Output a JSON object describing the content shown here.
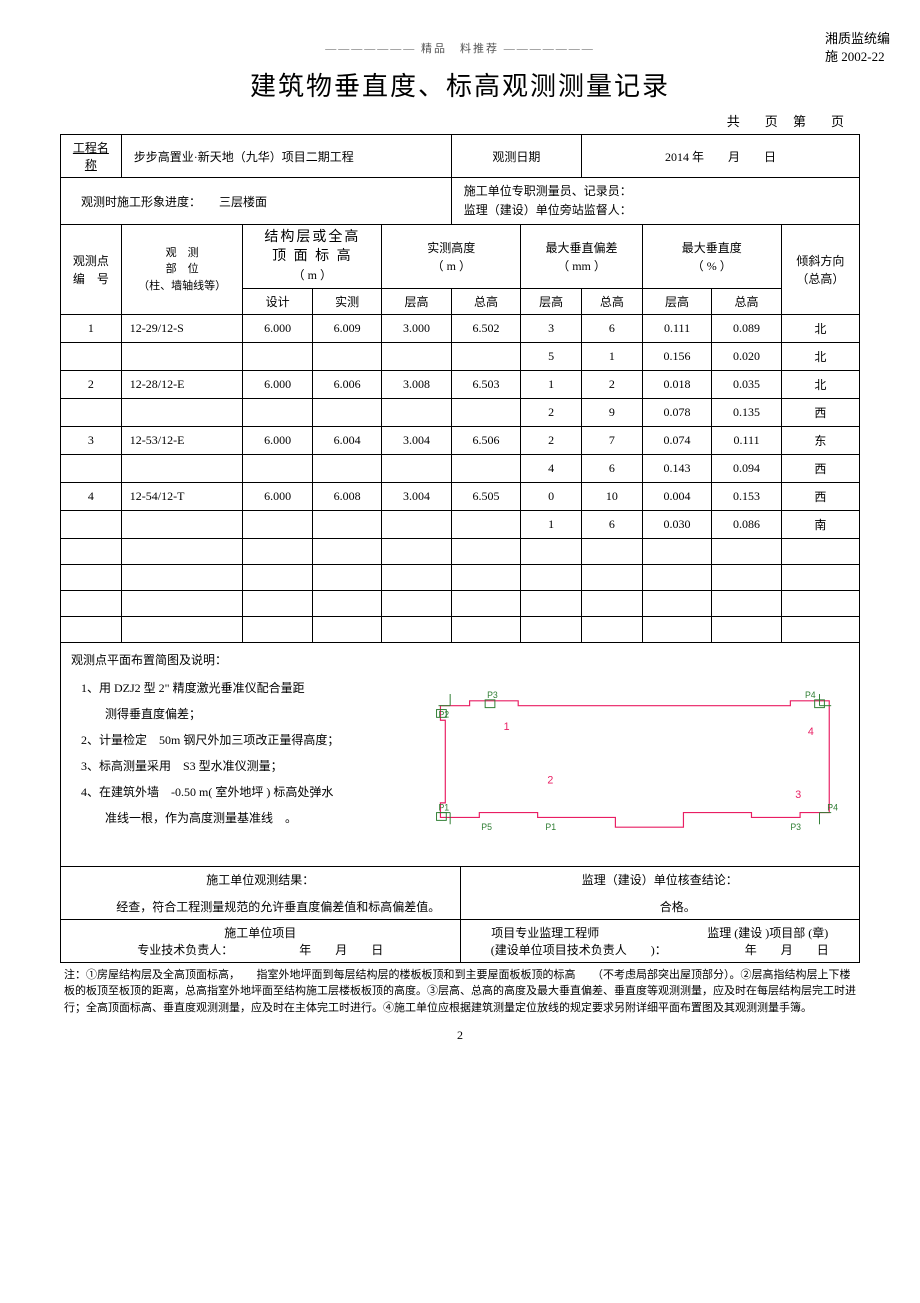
{
  "header": {
    "deco_text": "——————— 精品　料推荐 ———————",
    "org_text": "湘质监统编",
    "doc_no": "施 2002-22"
  },
  "title": "建筑物垂直度、标高观测测量记录",
  "page_indicator": "共　页 第　页",
  "project": {
    "name_label": "工程名称",
    "name_value": "步步高置业·新天地（九华）项目二期工程",
    "date_label": "观测日期",
    "date_value": "2014 年　　月　　日"
  },
  "progress": {
    "label": "观测时施工形象进度：",
    "value": "三层楼面",
    "staff_line1": "施工单位专职测量员、记录员：",
    "staff_line2": "监理（建设）单位旁站监督人："
  },
  "table_headers": {
    "point_no": "观测点\n编　号",
    "position": "观　测\n部　位\n（柱、墙轴线等）",
    "struct_height": "结构层或全高\n顶 面 标 高",
    "struct_unit": "（ m ）",
    "design": "设计",
    "measured": "实测",
    "actual_height": "实测高度",
    "actual_unit": "（ m ）",
    "floor_h": "层高",
    "total_h": "总高",
    "max_dev": "最大垂直偏差",
    "max_dev_unit": "（ mm ）",
    "max_vert": "最大垂直度",
    "max_vert_unit": "（ % ）",
    "tilt_dir": "倾斜方向\n（总高）"
  },
  "rows": [
    {
      "no": "1",
      "pos": "12-29/12-S",
      "design": "6.000",
      "measured": "6.009",
      "fh": "3.000",
      "th": "6.502",
      "dfh": "3",
      "dth": "6",
      "vfh": "0.111",
      "vth": "0.089",
      "dir": "北"
    },
    {
      "no": "",
      "pos": "",
      "design": "",
      "measured": "",
      "fh": "",
      "th": "",
      "dfh": "5",
      "dth": "1",
      "vfh": "0.156",
      "vth": "0.020",
      "dir": "北"
    },
    {
      "no": "2",
      "pos": "12-28/12-E",
      "design": "6.000",
      "measured": "6.006",
      "fh": "3.008",
      "th": "6.503",
      "dfh": "1",
      "dth": "2",
      "vfh": "0.018",
      "vth": "0.035",
      "dir": "北"
    },
    {
      "no": "",
      "pos": "",
      "design": "",
      "measured": "",
      "fh": "",
      "th": "",
      "dfh": "2",
      "dth": "9",
      "vfh": "0.078",
      "vth": "0.135",
      "dir": "西"
    },
    {
      "no": "3",
      "pos": "12-53/12-E",
      "design": "6.000",
      "measured": "6.004",
      "fh": "3.004",
      "th": "6.506",
      "dfh": "2",
      "dth": "7",
      "vfh": "0.074",
      "vth": "0.111",
      "dir": "东"
    },
    {
      "no": "",
      "pos": "",
      "design": "",
      "measured": "",
      "fh": "",
      "th": "",
      "dfh": "4",
      "dth": "6",
      "vfh": "0.143",
      "vth": "0.094",
      "dir": "西"
    },
    {
      "no": "4",
      "pos": "12-54/12-T",
      "design": "6.000",
      "measured": "6.008",
      "fh": "3.004",
      "th": "6.505",
      "dfh": "0",
      "dth": "10",
      "vfh": "0.004",
      "vth": "0.153",
      "dir": "西"
    },
    {
      "no": "",
      "pos": "",
      "design": "",
      "measured": "",
      "fh": "",
      "th": "",
      "dfh": "1",
      "dth": "6",
      "vfh": "0.030",
      "vth": "0.086",
      "dir": "南"
    }
  ],
  "empty_rows_count": 4,
  "notes": {
    "heading": "观测点平面布置简图及说明：",
    "items": [
      "1、用 DZJ2 型 2\" 精度激光垂准仪配合量距",
      "　　测得垂直度偏差；",
      "2、计量检定　50m 钢尺外加三项改正量得高度；",
      "3、标高测量采用　S3 型水准仪测量；",
      "4、在建筑外墙　-0.50 m( 室外地坪 ) 标高处弹水",
      "　　准线一根，作为高度测量基准线　。"
    ]
  },
  "diagram": {
    "outline_color": "#e91e63",
    "marker_color": "#2e7d32",
    "text_color": "#e91e63",
    "labels": [
      "1",
      "2",
      "3",
      "4"
    ],
    "points": [
      "P3",
      "P2",
      "P1",
      "P4",
      "P5",
      "P1",
      "P2",
      "P3",
      "P4"
    ]
  },
  "conclusion": {
    "left_title": "施工单位观测结果：",
    "left_body": "　　　经查，符合工程测量规范的允许垂直度偏差值和标高偏差值。",
    "right_title": "监理（建设）单位核查结论：",
    "right_body": "　　　合格。"
  },
  "signatures": {
    "left_label1": "施工单位项目",
    "left_label2": "专业技术负责人：",
    "date_str": "年　　月　　日",
    "mid_label1": "项目专业监理工程师",
    "mid_label2": "(建设单位项目技术负责人　　)：",
    "right_label": "监理 (建设 )项目部 (章)"
  },
  "footnote": "注：①房屋结构层及全高顶面标高，　　指室外地坪面到每层结构层的楼板板顶和到主要屋面板板顶的标高　　（不考虑局部突出屋顶部分）。②层高指结构层上下楼板的板顶至板顶的距离，总高指室外地坪面至结构施工层楼板板顶的高度。③层高、总高的高度及最大垂直偏差、垂直度等观测测量，应及时在每层结构层完工时进行；全高顶面标高、垂直度观测测量，应及时在主体完工时进行。④施工单位应根据建筑测量定位放线的规定要求另附详细平面布置图及其观测测量手簿。",
  "page_number": "2"
}
